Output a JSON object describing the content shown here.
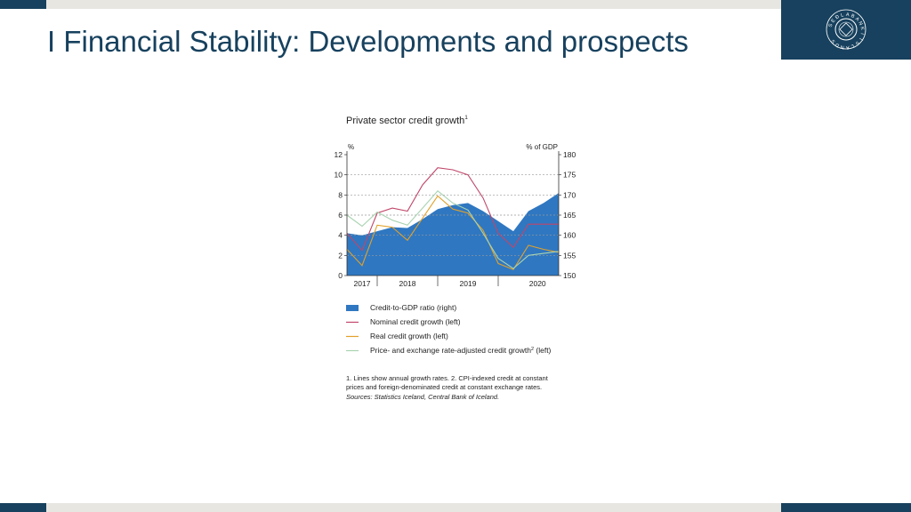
{
  "slide": {
    "title": "I Financial Stability: Developments and prospects",
    "logo_text": "SEÐLABANKI ÍSLANDS"
  },
  "colors": {
    "brand_navy": "#17415e",
    "strip_gray": "#e8e6e1",
    "area_blue": "#2f77c1",
    "nominal": "#c0466a",
    "real": "#e1a12a",
    "adjusted": "#a9d3b1"
  },
  "chart_data": {
    "type": "area",
    "title": "Private sector credit growth",
    "title_footnote": "1",
    "left_axis_unit": "%",
    "right_axis_unit": "% of GDP",
    "left_ylim": [
      0,
      12
    ],
    "right_ylim": [
      150,
      180
    ],
    "left_ticks": [
      "0",
      "2",
      "4",
      "6",
      "8",
      "10",
      "12"
    ],
    "right_ticks": [
      "150",
      "155",
      "160",
      "165",
      "170",
      "175",
      "180"
    ],
    "x_labels": [
      "2017",
      "2018",
      "2019",
      "2020"
    ],
    "x": [
      2016.75,
      2017.0,
      2017.25,
      2017.5,
      2017.75,
      2018.0,
      2018.25,
      2018.5,
      2018.75,
      2019.0,
      2019.25,
      2019.5,
      2019.75,
      2020.0,
      2020.25
    ],
    "grid": "dashed horizontal",
    "series": [
      {
        "name": "Credit-to-GDP ratio (right)",
        "axis": "right",
        "kind": "area",
        "values": [
          160.5,
          160.0,
          161.0,
          162.0,
          161.8,
          164.0,
          166.5,
          167.5,
          168.0,
          166.0,
          163.5,
          161.0,
          166.0,
          168.0,
          170.5
        ]
      },
      {
        "name": "Nominal credit growth (left)",
        "axis": "left",
        "kind": "line",
        "values": [
          4.2,
          2.5,
          6.2,
          6.7,
          6.4,
          9.0,
          10.7,
          10.5,
          10.0,
          7.7,
          4.2,
          2.8,
          5.1,
          5.1,
          5.1
        ]
      },
      {
        "name": "Real credit growth (left)",
        "axis": "left",
        "kind": "line",
        "values": [
          2.6,
          1.0,
          5.0,
          4.8,
          3.5,
          5.7,
          7.9,
          6.6,
          6.2,
          4.5,
          1.2,
          0.6,
          3.0,
          2.6,
          2.3
        ]
      },
      {
        "name": "Price- and exchange rate-adjusted credit growth (left)",
        "axis": "left",
        "kind": "line",
        "values": [
          6.0,
          4.9,
          6.3,
          5.5,
          5.0,
          6.7,
          8.4,
          7.2,
          6.5,
          4.2,
          1.7,
          0.7,
          2.0,
          2.2,
          2.4
        ]
      }
    ],
    "legend": [
      {
        "label": "Credit-to-GDP ratio (right)",
        "kind": "box",
        "color": "#2f77c1"
      },
      {
        "label": "Nominal credit growth (left)",
        "kind": "line",
        "color": "#c0466a"
      },
      {
        "label": "Real credit growth (left)",
        "kind": "line",
        "color": "#e1a12a"
      },
      {
        "label": "Price- and exchange rate-adjusted credit growth",
        "sup": "2",
        "suffix": " (left)",
        "kind": "line",
        "color": "#a9d3b1"
      }
    ],
    "legend_position": "below"
  },
  "notes": {
    "line1": "1. Lines show annual growth rates. 2. CPI-indexed credit at constant",
    "line2": "prices and foreign-denominated credit at constant exchange rates.",
    "sources": "Sources: Statistics Iceland, Central Bank of Iceland."
  }
}
